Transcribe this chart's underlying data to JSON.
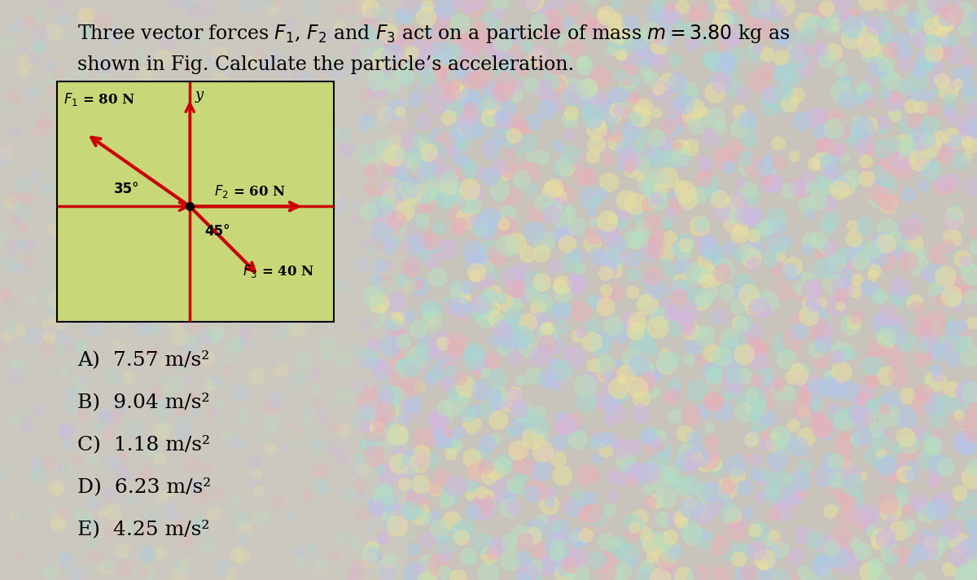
{
  "title_line1": "Three vector forces $F_1$, $F_2$ and $F_3$ act on a particle of mass $m = 3.80$ kg as",
  "title_line2": "shown in Fig. Calculate the particle’s acceleration.",
  "diagram_bg_color": "#c8d878",
  "arrow_color": "#cc0000",
  "angle_35_label": "35°",
  "angle_45_label": "45°",
  "answers": [
    "A)  7.57 m/s²",
    "B)  9.04 m/s²",
    "C)  1.18 m/s²",
    "D)  6.23 m/s²",
    "E)  4.25 m/s²"
  ],
  "answer_fontsize": 18,
  "title_fontsize": 17,
  "left_bg_color": "#d8d5ce",
  "right_bg_color": "#ccc8c0"
}
